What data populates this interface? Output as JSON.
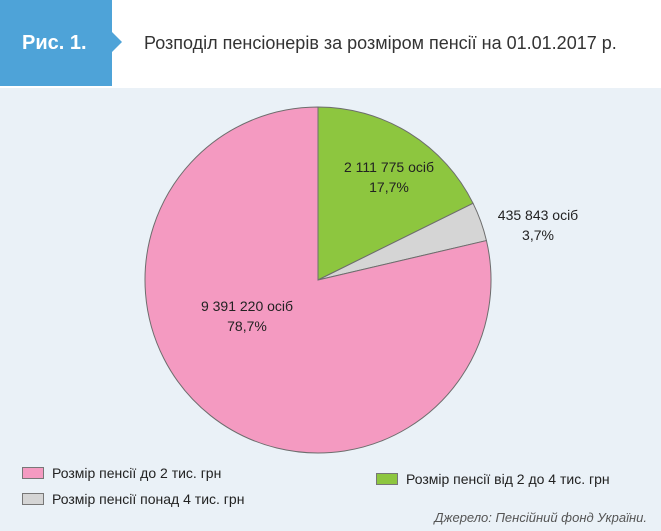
{
  "header": {
    "figure_label": "Рис. 1.",
    "title": "Розподіл пенсіонерів за розміром пенсії на 01.01.2017 р."
  },
  "chart_data": {
    "type": "pie",
    "categories": [
      "Розмір пенсії від 2 до 4 тис. грн",
      "Розмір пенсії понад 4 тис. грн",
      "Розмір пенсії до 2 тис. грн"
    ],
    "values": [
      2111775,
      435843,
      9391220
    ],
    "percent_labels": [
      "17,7%",
      "3,7%",
      "78,7%"
    ],
    "value_labels": [
      "2 111 775 осіб",
      "435 843 осіб",
      "9 391 220 осіб"
    ],
    "colors": [
      "#8dc63f",
      "#d5d5d5",
      "#f49ac1"
    ],
    "legend": [
      {
        "label": "Розмір пенсії до 2 тис. грн",
        "color": "#f49ac1"
      },
      {
        "label": "Розмір пенсії понад 4 тис. грн",
        "color": "#d5d5d5"
      },
      {
        "label": "Розмір пенсії від 2 до 4 тис. грн",
        "color": "#8dc63f"
      }
    ],
    "legend_position": "bottom"
  },
  "source": "Джерело: Пенсійний фонд України."
}
